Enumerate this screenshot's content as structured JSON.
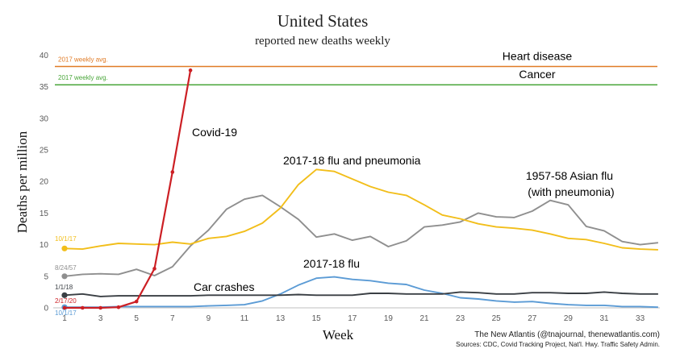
{
  "chart_data": {
    "type": "line",
    "title": "United States",
    "subtitle": "reported new deaths weekly",
    "xlabel": "Week",
    "ylabel": "Deaths per million",
    "xlim": [
      0.5,
      34.5
    ],
    "ylim": [
      0,
      40
    ],
    "x_ticks": [
      1,
      3,
      5,
      7,
      9,
      11,
      13,
      15,
      17,
      19,
      21,
      23,
      25,
      27,
      29,
      31,
      33
    ],
    "y_ticks": [
      0,
      5,
      10,
      15,
      20,
      25,
      30,
      35,
      40
    ],
    "grid": false,
    "reference_lines": [
      {
        "name": "Heart disease",
        "value": 38.2,
        "caption": "2017 weekly avg.",
        "color": "#e07b26"
      },
      {
        "name": "Cancer",
        "value": 35.3,
        "caption": "2017 weekly avg.",
        "color": "#4aa63a"
      }
    ],
    "series": [
      {
        "name": "Covid-19",
        "start_label": "2/17/20",
        "color": "#cc1f24",
        "x": [
          1,
          2,
          3,
          4,
          5,
          6,
          7,
          8
        ],
        "values": [
          0.0,
          0.0,
          0.0,
          0.1,
          1.0,
          6.2,
          21.5,
          37.6
        ]
      },
      {
        "name": "2017-18 flu and pneumonia",
        "start_label": "10/1/17",
        "color": "#f2be1a",
        "x": [
          1,
          2,
          3,
          4,
          5,
          6,
          7,
          8,
          9,
          10,
          11,
          12,
          13,
          14,
          15,
          16,
          17,
          18,
          19,
          20,
          21,
          22,
          23,
          24,
          25,
          26,
          27,
          28,
          29,
          30,
          31,
          32,
          33,
          34
        ],
        "values": [
          9.4,
          9.3,
          9.8,
          10.2,
          10.1,
          10.0,
          10.4,
          10.1,
          11.0,
          11.3,
          12.1,
          13.4,
          15.8,
          19.5,
          21.9,
          21.6,
          20.4,
          19.2,
          18.3,
          17.8,
          16.3,
          14.7,
          14.1,
          13.3,
          12.8,
          12.6,
          12.3,
          11.7,
          11.0,
          10.8,
          10.2,
          9.5,
          9.3,
          9.2
        ]
      },
      {
        "name": "1957-58 Asian flu (with pneumonia)",
        "start_label": "8/24/57",
        "color": "#8f8f8f",
        "x": [
          1,
          2,
          3,
          4,
          5,
          6,
          7,
          8,
          9,
          10,
          11,
          12,
          13,
          14,
          15,
          16,
          17,
          18,
          19,
          20,
          21,
          22,
          23,
          24,
          25,
          26,
          27,
          28,
          29,
          30,
          31,
          32,
          33,
          34
        ],
        "values": [
          5.0,
          5.3,
          5.4,
          5.3,
          6.1,
          5.1,
          6.5,
          9.8,
          12.3,
          15.6,
          17.2,
          17.8,
          16.0,
          14.0,
          11.2,
          11.7,
          10.7,
          11.3,
          9.7,
          10.6,
          12.8,
          13.1,
          13.6,
          15.0,
          14.4,
          14.3,
          15.3,
          17.0,
          16.3,
          12.9,
          12.2,
          10.5,
          10.0,
          10.3
        ]
      },
      {
        "name": "2017-18 flu",
        "start_label": "10/1/17",
        "color": "#5b9bd5",
        "x": [
          1,
          2,
          3,
          4,
          5,
          6,
          7,
          8,
          9,
          10,
          11,
          12,
          13,
          14,
          15,
          16,
          17,
          18,
          19,
          20,
          21,
          22,
          23,
          24,
          25,
          26,
          27,
          28,
          29,
          30,
          31,
          32,
          33,
          34
        ],
        "values": [
          0.1,
          0.1,
          0.1,
          0.2,
          0.2,
          0.2,
          0.2,
          0.2,
          0.3,
          0.4,
          0.5,
          1.1,
          2.2,
          3.6,
          4.7,
          4.9,
          4.5,
          4.3,
          3.9,
          3.7,
          2.8,
          2.3,
          1.6,
          1.4,
          1.1,
          0.9,
          1.0,
          0.7,
          0.5,
          0.4,
          0.4,
          0.2,
          0.2,
          0.1
        ]
      },
      {
        "name": "Car crashes",
        "start_label": "1/1/18",
        "color": "#3a3f44",
        "x": [
          1,
          2,
          3,
          4,
          5,
          6,
          7,
          8,
          9,
          10,
          11,
          12,
          13,
          14,
          15,
          16,
          17,
          18,
          19,
          20,
          21,
          22,
          23,
          24,
          25,
          26,
          27,
          28,
          29,
          30,
          31,
          32,
          33,
          34
        ],
        "values": [
          2.0,
          2.2,
          1.8,
          1.9,
          1.9,
          1.9,
          1.9,
          1.9,
          2.0,
          2.0,
          2.0,
          2.0,
          2.0,
          2.1,
          2.0,
          2.0,
          2.0,
          2.3,
          2.3,
          2.2,
          2.2,
          2.2,
          2.5,
          2.4,
          2.2,
          2.2,
          2.4,
          2.4,
          2.3,
          2.3,
          2.5,
          2.3,
          2.2,
          2.2
        ]
      }
    ],
    "annotations": {
      "covid": "Covid-19",
      "flu_pneumonia": "2017-18 flu and pneumonia",
      "asian_flu_1": "1957-58 Asian flu",
      "asian_flu_2": "(with pneumonia)",
      "flu": "2017-18 flu",
      "car": "Car crashes"
    },
    "credit": "The New Atlantis (@tnajournal, thenewatlantis.com)",
    "sources": "Sources: CDC, Covid Tracking Project, Nat'l. Hwy. Traffic Safety Admin."
  }
}
